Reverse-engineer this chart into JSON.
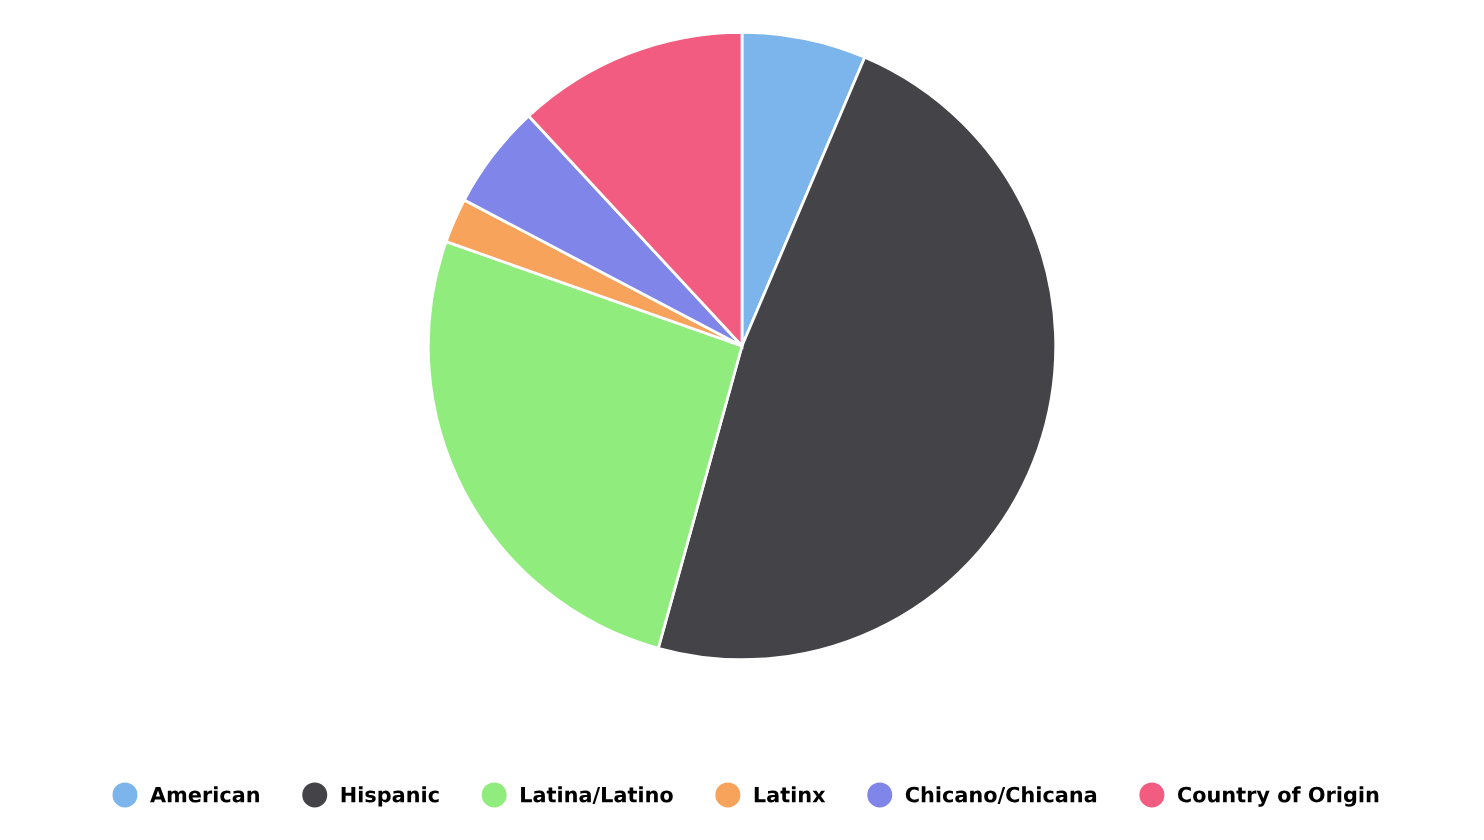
{
  "chart_data": {
    "type": "pie",
    "categories": [
      "American",
      "Hispanic",
      "Latina/Latino",
      "Latinx",
      "Chicano/Chicana",
      "Country of Origin"
    ],
    "values": [
      6.4,
      47.9,
      26.1,
      2.3,
      5.4,
      11.9
    ],
    "colors": [
      "#7cb5ec",
      "#434348",
      "#90ed7d",
      "#f7a35c",
      "#8085e9",
      "#f15c80"
    ],
    "legend": "bottom"
  }
}
